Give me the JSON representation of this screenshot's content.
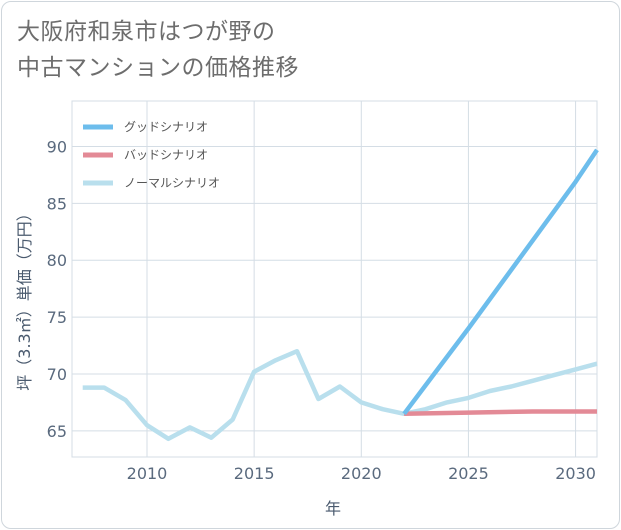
{
  "title_lines": [
    "大阪府和泉市はつが野の",
    "中古マンションの価格推移"
  ],
  "colors": {
    "good": "#6dbdec",
    "bad": "#e38a96",
    "normal": "#b9dfed",
    "grid": "#d4dde5"
  },
  "chart_data": {
    "type": "line",
    "xlabel": "年",
    "ylabel": "坪（3.3㎡）単価（万円）",
    "xlim": [
      2006.5,
      2031
    ],
    "ylim": [
      62.7,
      94
    ],
    "xticks": [
      2010,
      2015,
      2020,
      2025,
      2030
    ],
    "yticks": [
      65,
      70,
      75,
      80,
      85,
      90
    ],
    "grid": true,
    "legend_position": "top-left",
    "series": [
      {
        "key": "good",
        "name": "グッドシナリオ",
        "x": [
          2022,
          2025,
          2030,
          2031
        ],
        "y": [
          66.5,
          74.0,
          86.9,
          89.7
        ]
      },
      {
        "key": "bad",
        "name": "バッドシナリオ",
        "x": [
          2022,
          2025,
          2028,
          2031
        ],
        "y": [
          66.5,
          66.6,
          66.7,
          66.7
        ]
      },
      {
        "key": "normal",
        "name": "ノーマルシナリオ",
        "x": [
          2007,
          2008,
          2009,
          2010,
          2011,
          2012,
          2013,
          2014,
          2015,
          2016,
          2017,
          2018,
          2019,
          2020,
          2021,
          2022,
          2023,
          2024,
          2025,
          2026,
          2027,
          2028,
          2029,
          2030,
          2031
        ],
        "y": [
          68.8,
          68.8,
          67.7,
          65.5,
          64.3,
          65.3,
          64.4,
          66.0,
          70.2,
          71.2,
          72.0,
          67.8,
          68.9,
          67.5,
          66.9,
          66.5,
          66.9,
          67.5,
          67.9,
          68.5,
          68.9,
          69.4,
          69.9,
          70.4,
          70.9
        ]
      }
    ]
  }
}
